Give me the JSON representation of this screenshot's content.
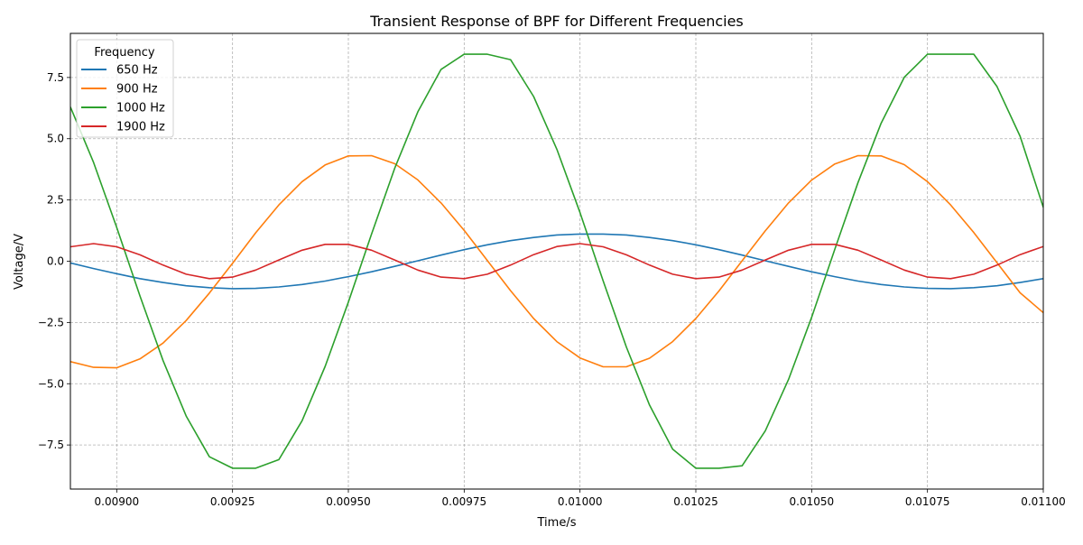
{
  "chart_data": {
    "type": "line",
    "title": "Transient Response of BPF for Different Frequencies",
    "xlabel": "Time/s",
    "ylabel": "Voltage/V",
    "xlim": [
      0.0089,
      0.011
    ],
    "ylim": [
      -9.3,
      9.3
    ],
    "grid": true,
    "legend": {
      "title": "Frequency",
      "placement": "top-left"
    },
    "xticks": [
      0.009,
      0.00925,
      0.0095,
      0.00975,
      0.01,
      0.01025,
      0.0105,
      0.01075,
      0.011
    ],
    "xtick_labels": [
      "0.00900",
      "0.00925",
      "0.00950",
      "0.00975",
      "0.01000",
      "0.01025",
      "0.01050",
      "0.01075",
      "0.01100"
    ],
    "yticks": [
      -7.5,
      -5,
      -2.5,
      0,
      2.5,
      5,
      7.5
    ],
    "ytick_labels": [
      "−7.5",
      "−5.0",
      "−2.5",
      "0.0",
      "2.5",
      "5.0",
      "7.5"
    ],
    "x": [
      0.0089,
      0.00895,
      0.009,
      0.00905,
      0.0091,
      0.00915,
      0.0092,
      0.00925,
      0.0093,
      0.00935,
      0.0094,
      0.00945,
      0.0095,
      0.00955,
      0.0096,
      0.00965,
      0.0097,
      0.00975,
      0.0098,
      0.00985,
      0.0099,
      0.00995,
      0.01,
      0.01005,
      0.0101,
      0.01015,
      0.0102,
      0.01025,
      0.0103,
      0.01035,
      0.0104,
      0.01045,
      0.0105,
      0.01055,
      0.0106,
      0.01065,
      0.0107,
      0.01075,
      0.0108,
      0.01085,
      0.0109,
      0.01095,
      0.011
    ],
    "series": [
      {
        "name": "650 Hz",
        "color": "#1f77b4",
        "values": [
          -0.07,
          -0.3,
          -0.51,
          -0.71,
          -0.87,
          -1.0,
          -1.08,
          -1.12,
          -1.11,
          -1.05,
          -0.95,
          -0.81,
          -0.63,
          -0.43,
          -0.21,
          0.02,
          0.25,
          0.47,
          0.67,
          0.84,
          0.97,
          1.07,
          1.11,
          1.11,
          1.07,
          0.97,
          0.84,
          0.67,
          0.47,
          0.25,
          0.02,
          -0.21,
          -0.43,
          -0.63,
          -0.81,
          -0.95,
          -1.05,
          -1.11,
          -1.12,
          -1.08,
          -1.0,
          -0.87,
          -0.71
        ]
      },
      {
        "name": "900 Hz",
        "color": "#ff7f0e",
        "values": [
          -4.1,
          -4.33,
          -4.35,
          -3.99,
          -3.34,
          -2.42,
          -1.3,
          -0.08,
          1.16,
          2.3,
          3.25,
          3.93,
          4.3,
          4.31,
          3.98,
          3.32,
          2.38,
          1.26,
          0.03,
          -1.2,
          -2.34,
          -3.28,
          -3.95,
          -4.31,
          -4.31,
          -3.96,
          -3.28,
          -2.34,
          -1.21,
          0.02,
          1.24,
          2.38,
          3.31,
          3.97,
          4.31,
          4.3,
          3.94,
          3.25,
          2.3,
          1.17,
          -0.06,
          -1.29,
          -2.1
        ]
      },
      {
        "name": "1000 Hz",
        "color": "#2ca02c",
        "values": [
          6.3,
          4.03,
          1.38,
          -1.41,
          -4.06,
          -6.32,
          -7.98,
          -8.45,
          -8.45,
          -8.1,
          -6.51,
          -4.29,
          -1.67,
          1.11,
          3.79,
          6.1,
          7.83,
          8.45,
          8.45,
          8.23,
          6.72,
          4.57,
          1.98,
          -0.8,
          -3.5,
          -5.87,
          -7.67,
          -8.45,
          -8.45,
          -8.35,
          -6.92,
          -4.83,
          -2.29,
          0.49,
          3.21,
          5.63,
          7.51,
          8.45,
          8.45,
          8.45,
          7.13,
          5.1,
          2.2
        ]
      },
      {
        "name": "1900 Hz",
        "color": "#d62728",
        "values": [
          0.59,
          0.72,
          0.59,
          0.26,
          -0.16,
          -0.53,
          -0.71,
          -0.65,
          -0.36,
          0.05,
          0.45,
          0.69,
          0.69,
          0.45,
          0.05,
          -0.36,
          -0.65,
          -0.71,
          -0.53,
          -0.16,
          0.27,
          0.6,
          0.72,
          0.59,
          0.26,
          -0.16,
          -0.53,
          -0.71,
          -0.65,
          -0.36,
          0.05,
          0.45,
          0.69,
          0.69,
          0.45,
          0.05,
          -0.36,
          -0.65,
          -0.71,
          -0.53,
          -0.16,
          0.27,
          0.6
        ]
      }
    ]
  }
}
